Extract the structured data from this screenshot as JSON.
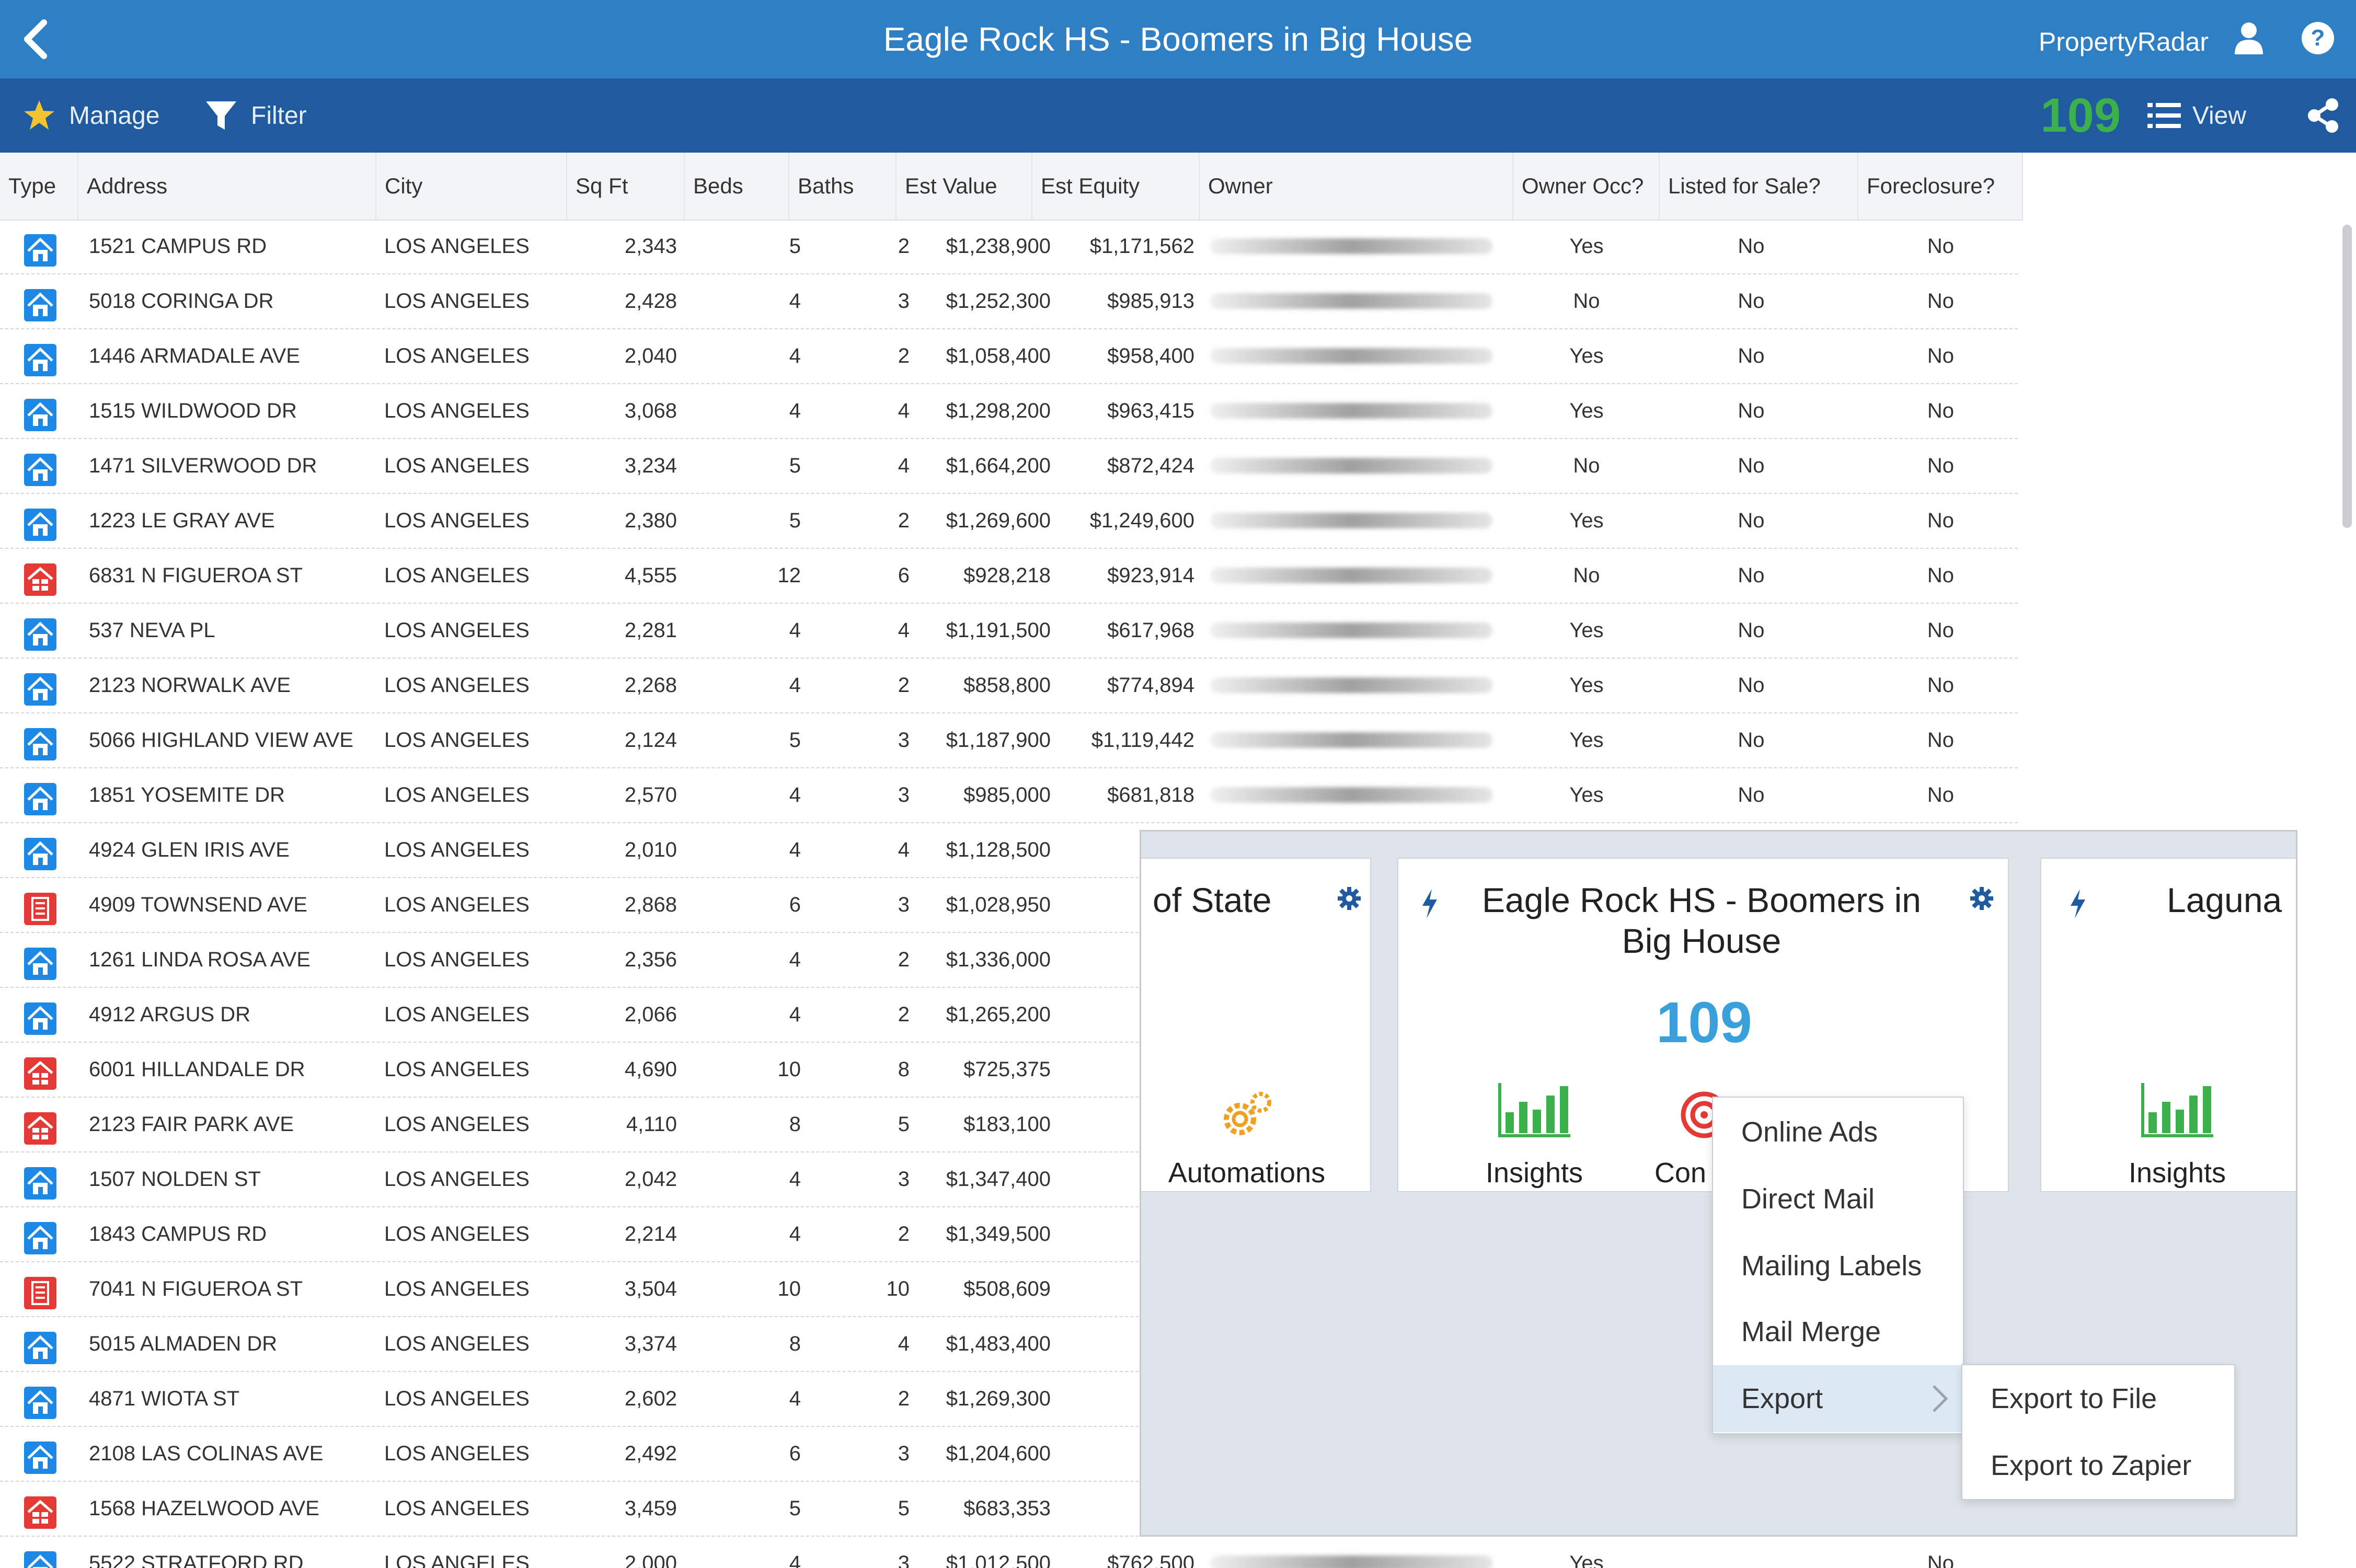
{
  "window": {
    "title": "Eagle Rock HS - Boomers in Big House",
    "brand": "PropertyRadar"
  },
  "toolbar": {
    "manage_label": "Manage",
    "filter_label": "Filter",
    "count": "109",
    "view_label": "View",
    "count_color": "#3cb04a"
  },
  "table": {
    "headers": [
      "Type",
      "Address",
      "City",
      "Sq Ft",
      "Beds",
      "Baths",
      "Est Value",
      "Est Equity",
      "Owner",
      "Owner Occ?",
      "Listed for Sale?",
      "Foreclosure?"
    ],
    "rows": [
      {
        "type": "house",
        "address": "1521 CAMPUS RD",
        "city": "LOS ANGELES",
        "sqft": "2,343",
        "beds": "5",
        "baths": "2",
        "value": "$1,238,900",
        "equity": "$1,171,562",
        "occ": "Yes",
        "listed": "No",
        "foreclosure": "No"
      },
      {
        "type": "house",
        "address": "5018 CORINGA DR",
        "city": "LOS ANGELES",
        "sqft": "2,428",
        "beds": "4",
        "baths": "3",
        "value": "$1,252,300",
        "equity": "$985,913",
        "occ": "No",
        "listed": "No",
        "foreclosure": "No"
      },
      {
        "type": "house",
        "address": "1446 ARMADALE AVE",
        "city": "LOS ANGELES",
        "sqft": "2,040",
        "beds": "4",
        "baths": "2",
        "value": "$1,058,400",
        "equity": "$958,400",
        "occ": "Yes",
        "listed": "No",
        "foreclosure": "No"
      },
      {
        "type": "house",
        "address": "1515 WILDWOOD DR",
        "city": "LOS ANGELES",
        "sqft": "3,068",
        "beds": "4",
        "baths": "4",
        "value": "$1,298,200",
        "equity": "$963,415",
        "occ": "Yes",
        "listed": "No",
        "foreclosure": "No"
      },
      {
        "type": "house",
        "address": "1471 SILVERWOOD DR",
        "city": "LOS ANGELES",
        "sqft": "3,234",
        "beds": "5",
        "baths": "4",
        "value": "$1,664,200",
        "equity": "$872,424",
        "occ": "No",
        "listed": "No",
        "foreclosure": "No"
      },
      {
        "type": "house",
        "address": "1223 LE GRAY AVE",
        "city": "LOS ANGELES",
        "sqft": "2,380",
        "beds": "5",
        "baths": "2",
        "value": "$1,269,600",
        "equity": "$1,249,600",
        "occ": "Yes",
        "listed": "No",
        "foreclosure": "No"
      },
      {
        "type": "multi",
        "address": "6831 N FIGUEROA ST",
        "city": "LOS ANGELES",
        "sqft": "4,555",
        "beds": "12",
        "baths": "6",
        "value": "$928,218",
        "equity": "$923,914",
        "occ": "No",
        "listed": "No",
        "foreclosure": "No"
      },
      {
        "type": "house",
        "address": "537 NEVA PL",
        "city": "LOS ANGELES",
        "sqft": "2,281",
        "beds": "4",
        "baths": "4",
        "value": "$1,191,500",
        "equity": "$617,968",
        "occ": "Yes",
        "listed": "No",
        "foreclosure": "No"
      },
      {
        "type": "house2",
        "address": "2123 NORWALK AVE",
        "city": "LOS ANGELES",
        "sqft": "2,268",
        "beds": "4",
        "baths": "2",
        "value": "$858,800",
        "equity": "$774,894",
        "occ": "Yes",
        "listed": "No",
        "foreclosure": "No"
      },
      {
        "type": "house",
        "address": "5066 HIGHLAND VIEW AVE",
        "city": "LOS ANGELES",
        "sqft": "2,124",
        "beds": "5",
        "baths": "3",
        "value": "$1,187,900",
        "equity": "$1,119,442",
        "occ": "Yes",
        "listed": "No",
        "foreclosure": "No"
      },
      {
        "type": "house2",
        "address": "1851 YOSEMITE DR",
        "city": "LOS ANGELES",
        "sqft": "2,570",
        "beds": "4",
        "baths": "3",
        "value": "$985,000",
        "equity": "$681,818",
        "occ": "Yes",
        "listed": "No",
        "foreclosure": "No"
      },
      {
        "type": "house",
        "address": "4924 GLEN IRIS AVE",
        "city": "LOS ANGELES",
        "sqft": "2,010",
        "beds": "4",
        "baths": "4",
        "value": "$1,128,500",
        "equity": "$1,01",
        "occ": "",
        "listed": "",
        "foreclosure": ""
      },
      {
        "type": "apt",
        "address": "4909 TOWNSEND AVE",
        "city": "LOS ANGELES",
        "sqft": "2,868",
        "beds": "6",
        "baths": "3",
        "value": "$1,028,950",
        "equity": "$70",
        "occ": "",
        "listed": "",
        "foreclosure": ""
      },
      {
        "type": "house",
        "address": "1261 LINDA ROSA AVE",
        "city": "LOS ANGELES",
        "sqft": "2,356",
        "beds": "4",
        "baths": "2",
        "value": "$1,336,000",
        "equity": "$86",
        "occ": "",
        "listed": "",
        "foreclosure": ""
      },
      {
        "type": "house",
        "address": "4912 ARGUS DR",
        "city": "LOS ANGELES",
        "sqft": "2,066",
        "beds": "4",
        "baths": "2",
        "value": "$1,265,200",
        "equity": "$81",
        "occ": "",
        "listed": "",
        "foreclosure": ""
      },
      {
        "type": "multi",
        "address": "6001 HILLANDALE DR",
        "city": "LOS ANGELES",
        "sqft": "4,690",
        "beds": "10",
        "baths": "8",
        "value": "$725,375",
        "equity": "$67",
        "occ": "",
        "listed": "",
        "foreclosure": ""
      },
      {
        "type": "multi",
        "address": "2123 FAIR PARK AVE",
        "city": "LOS ANGELES",
        "sqft": "4,110",
        "beds": "8",
        "baths": "5",
        "value": "$183,100",
        "equity": "$18",
        "occ": "",
        "listed": "",
        "foreclosure": ""
      },
      {
        "type": "house",
        "address": "1507 NOLDEN ST",
        "city": "LOS ANGELES",
        "sqft": "2,042",
        "beds": "4",
        "baths": "3",
        "value": "$1,347,400",
        "equity": "$1,01",
        "occ": "",
        "listed": "",
        "foreclosure": ""
      },
      {
        "type": "house",
        "address": "1843 CAMPUS RD",
        "city": "LOS ANGELES",
        "sqft": "2,214",
        "beds": "4",
        "baths": "2",
        "value": "$1,349,500",
        "equity": "$1,29",
        "occ": "",
        "listed": "",
        "foreclosure": ""
      },
      {
        "type": "apt",
        "address": "7041 N FIGUEROA ST",
        "city": "LOS ANGELES",
        "sqft": "3,504",
        "beds": "10",
        "baths": "10",
        "value": "$508,609",
        "equity": "$37",
        "occ": "",
        "listed": "",
        "foreclosure": ""
      },
      {
        "type": "house",
        "address": "5015 ALMADEN DR",
        "city": "LOS ANGELES",
        "sqft": "3,374",
        "beds": "8",
        "baths": "4",
        "value": "$1,483,400",
        "equity": "$87",
        "occ": "",
        "listed": "",
        "foreclosure": ""
      },
      {
        "type": "house",
        "address": "4871 WIOTA ST",
        "city": "LOS ANGELES",
        "sqft": "2,602",
        "beds": "4",
        "baths": "2",
        "value": "$1,269,300",
        "equity": "$1,02",
        "occ": "",
        "listed": "",
        "foreclosure": ""
      },
      {
        "type": "house",
        "address": "2108 LAS COLINAS AVE",
        "city": "LOS ANGELES",
        "sqft": "2,492",
        "beds": "6",
        "baths": "3",
        "value": "$1,204,600",
        "equity": "$89",
        "occ": "",
        "listed": "",
        "foreclosure": ""
      },
      {
        "type": "multi",
        "address": "1568 HAZELWOOD AVE",
        "city": "LOS ANGELES",
        "sqft": "3,459",
        "beds": "5",
        "baths": "5",
        "value": "$683,353",
        "equity": "$55",
        "occ": "",
        "listed": "",
        "foreclosure": ""
      },
      {
        "type": "house",
        "address": "5522 STRATFORD RD",
        "city": "LOS ANGELES",
        "sqft": "2,000",
        "beds": "4",
        "baths": "3",
        "value": "$1,012,500",
        "equity": "$762,500",
        "occ": "Yes",
        "listed": "",
        "foreclosure": "No"
      }
    ]
  },
  "panel": {
    "left_card": {
      "title": "of State",
      "action": "Automations"
    },
    "center_card": {
      "title": "Eagle Rock HS - Boomers in Big House",
      "count": "109",
      "action_insights": "Insights",
      "action_partial": "Con"
    },
    "right_card": {
      "title": "Laguna",
      "action": "Insights"
    }
  },
  "menu": {
    "items": [
      "Online Ads",
      "Direct Mail",
      "Mailing Labels",
      "Mail Merge",
      "Export"
    ],
    "submenu": [
      "Export to File",
      "Export to Zapier"
    ]
  },
  "icons": {
    "back": "back-chevron-icon",
    "user": "user-icon",
    "help": "help-icon",
    "manage": "star-icon",
    "filter": "filter-icon",
    "view": "list-icon",
    "share": "share-icon"
  },
  "colors": {
    "titlebar": "#2f7fc4",
    "toolbar": "#1f5b9e",
    "house_icon": "#1e88e5",
    "multi_icon": "#e53935",
    "accent_count": "#39a0db"
  }
}
